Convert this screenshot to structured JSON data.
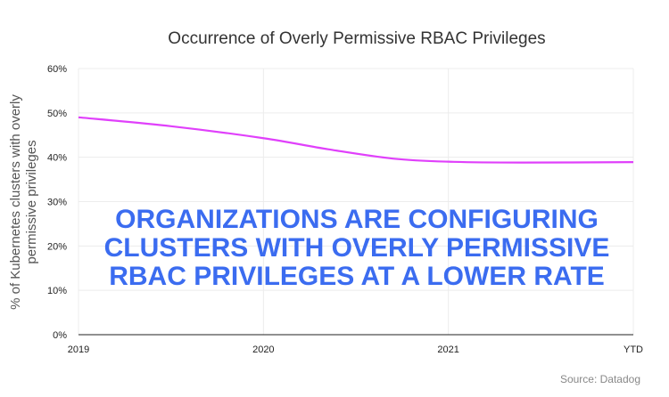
{
  "chart_data": {
    "type": "line",
    "title": "Occurrence of Overly Permissive RBAC Privileges",
    "xlabel": "",
    "ylabel": "% of Kubernetes clusters with overly permissive privileges",
    "ylabel_lines": [
      "% of Kubernetes clusters with overly",
      "permissive privileges"
    ],
    "categories": [
      "2019",
      "2020",
      "2021",
      "YTD"
    ],
    "x": [
      0,
      0.5,
      1,
      1.35,
      1.7,
      2,
      2.4,
      3
    ],
    "series": [
      {
        "values": [
          49,
          47,
          44.3,
          41.8,
          39.7,
          39,
          38.8,
          38.9
        ],
        "color": "#e040fb"
      }
    ],
    "ylim": [
      0,
      60
    ],
    "yticks": [
      0,
      10,
      20,
      30,
      40,
      50,
      60
    ],
    "ytick_labels": [
      "0%",
      "10%",
      "20%",
      "30%",
      "40%",
      "50%",
      "60%"
    ],
    "grid": true,
    "annotation": [
      "ORGANIZATIONS ARE CONFIGURING",
      "CLUSTERS WITH OVERLY PERMISSIVE",
      "RBAC PRIVILEGES AT A LOWER RATE"
    ],
    "annotation_color": "#3b6cf0",
    "source": "Source: Datadog"
  }
}
